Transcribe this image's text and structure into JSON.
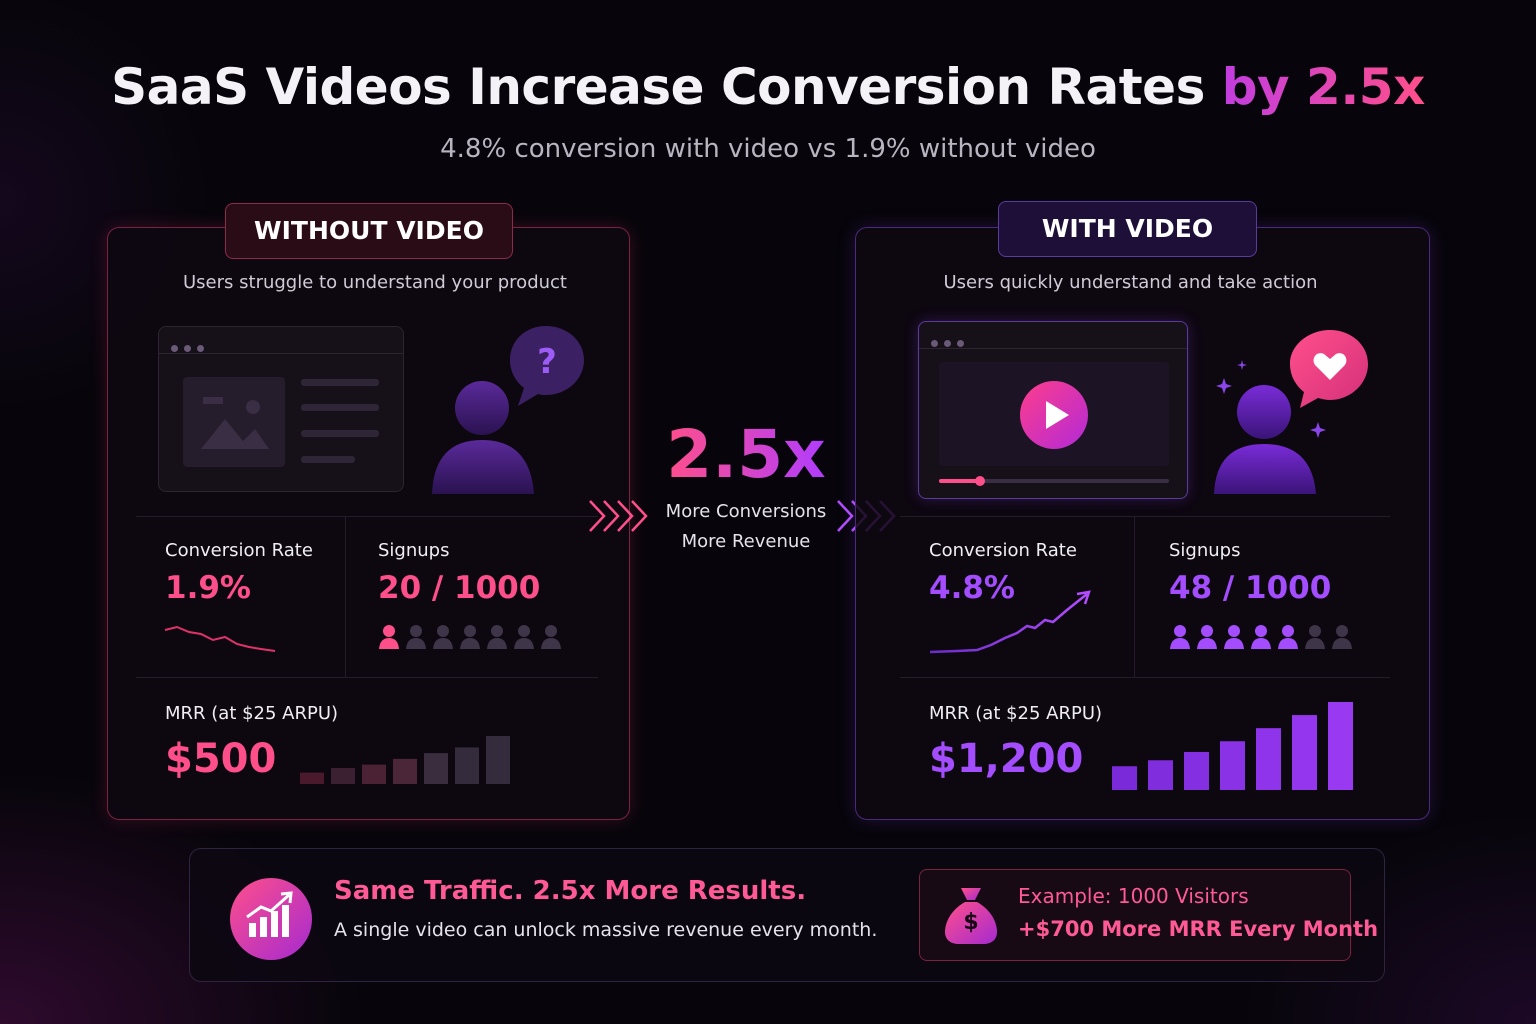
{
  "header": {
    "title_main": "SaaS Videos Increase Conversion Rates ",
    "title_highlight": "by 2.5x",
    "subtitle": "4.8% conversion with video vs 1.9% without video"
  },
  "without_video": {
    "badge": "WITHOUT VIDEO",
    "caption": "Users struggle to understand your product",
    "bubble_symbol": "?",
    "conversion_label": "Conversion Rate",
    "conversion_value": "1.9%",
    "signups_label": "Signups",
    "signups_value": "20 / 1000",
    "signups_highlighted_users": 1,
    "signups_total_users": 7,
    "mrr_label": "MRR (at $25 ARPU)",
    "mrr_value": "$500",
    "mrr_bars": [
      1,
      1.4,
      1.7,
      2.2,
      2.7,
      3.2,
      4.2
    ],
    "color": "#ff4f8b"
  },
  "with_video": {
    "badge": "WITH VIDEO",
    "caption": "Users quickly understand and take action",
    "conversion_label": "Conversion Rate",
    "conversion_value": "4.8%",
    "signups_label": "Signups",
    "signups_value": "48 / 1000",
    "signups_highlighted_users": 5,
    "signups_total_users": 7,
    "video_progress": 0.18,
    "mrr_label": "MRR (at $25 ARPU)",
    "mrr_value": "$1,200",
    "mrr_bars": [
      1,
      1.25,
      1.6,
      2.05,
      2.6,
      3.15,
      3.7
    ],
    "color": "#a44dff"
  },
  "center": {
    "multiplier": "2.5x",
    "line1": "More Conversions",
    "line2": "More Revenue"
  },
  "bottom": {
    "title": "Same Traffic. 2.5x More Results.",
    "subtitle": "A single video can unlock massive revenue every month.",
    "example_line1": "Example: 1000 Visitors",
    "example_line2": "+$700 More MRR Every Month",
    "money_symbol": "$"
  },
  "colors": {
    "pink": "#ff4f8b",
    "purple": "#a44dff",
    "background": "#07050b"
  }
}
